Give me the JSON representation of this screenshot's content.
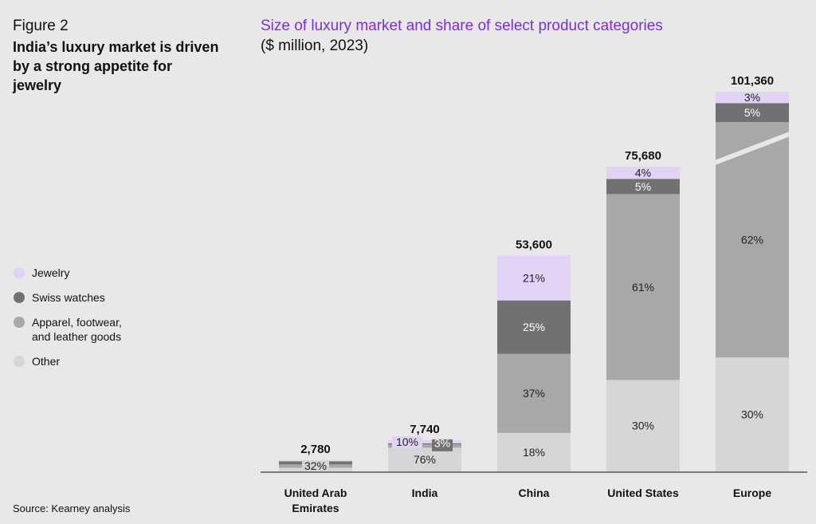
{
  "figure_label": "Figure 2",
  "figure_title": "India’s luxury market is driven by a strong appetite for jewelry",
  "source": "Source: Kearney analysis",
  "colors": {
    "jewelry": "#e2d2f6",
    "swiss_watches": "#717171",
    "apparel": "#a8a8a8",
    "other": "#d6d6d6",
    "accent": "#7b2fd6"
  },
  "chart_data": {
    "type": "bar",
    "title": "Size of luxury market and share of select product categories",
    "subtitle": "($ million, 2023)",
    "categories": [
      "United Arab Emirates",
      "India",
      "China",
      "United States",
      "Europe"
    ],
    "category_label_lines": [
      [
        "United Arab",
        "Emirates"
      ],
      [
        "India"
      ],
      [
        "China"
      ],
      [
        "United States"
      ],
      [
        "Europe"
      ]
    ],
    "totals": [
      2780,
      7740,
      53600,
      75680,
      101360
    ],
    "total_labels": [
      "2,780",
      "7,740",
      "53,600",
      "75,680",
      "101,360"
    ],
    "series": [
      {
        "name": "Other",
        "key": "other",
        "values": [
          32,
          76,
          18,
          30,
          30
        ],
        "labels": [
          "32%",
          "76%",
          "18%",
          "30%",
          "30%"
        ]
      },
      {
        "name": "Apparel, footwear, and leather goods",
        "key": "apparel",
        "values": [
          30,
          11,
          37,
          61,
          62
        ],
        "labels": [
          "",
          "",
          "37%",
          "61%",
          "62%"
        ]
      },
      {
        "name": "Swiss watches",
        "key": "swiss_watches",
        "values": [
          28,
          3,
          25,
          5,
          5
        ],
        "labels": [
          "",
          "3%",
          "25%",
          "5%",
          "5%"
        ]
      },
      {
        "name": "Jewelry",
        "key": "jewelry",
        "values": [
          10,
          10,
          21,
          4,
          3
        ],
        "labels": [
          "",
          "10%",
          "21%",
          "4%",
          "3%"
        ]
      }
    ],
    "legend": [
      {
        "key": "jewelry",
        "label": "Jewelry"
      },
      {
        "key": "swiss_watches",
        "label": "Swiss watches"
      },
      {
        "key": "apparel",
        "label": "Apparel, footwear, and leather goods"
      },
      {
        "key": "other",
        "label": "Other"
      }
    ],
    "axis_break": "Europe",
    "legend_position": "left"
  }
}
